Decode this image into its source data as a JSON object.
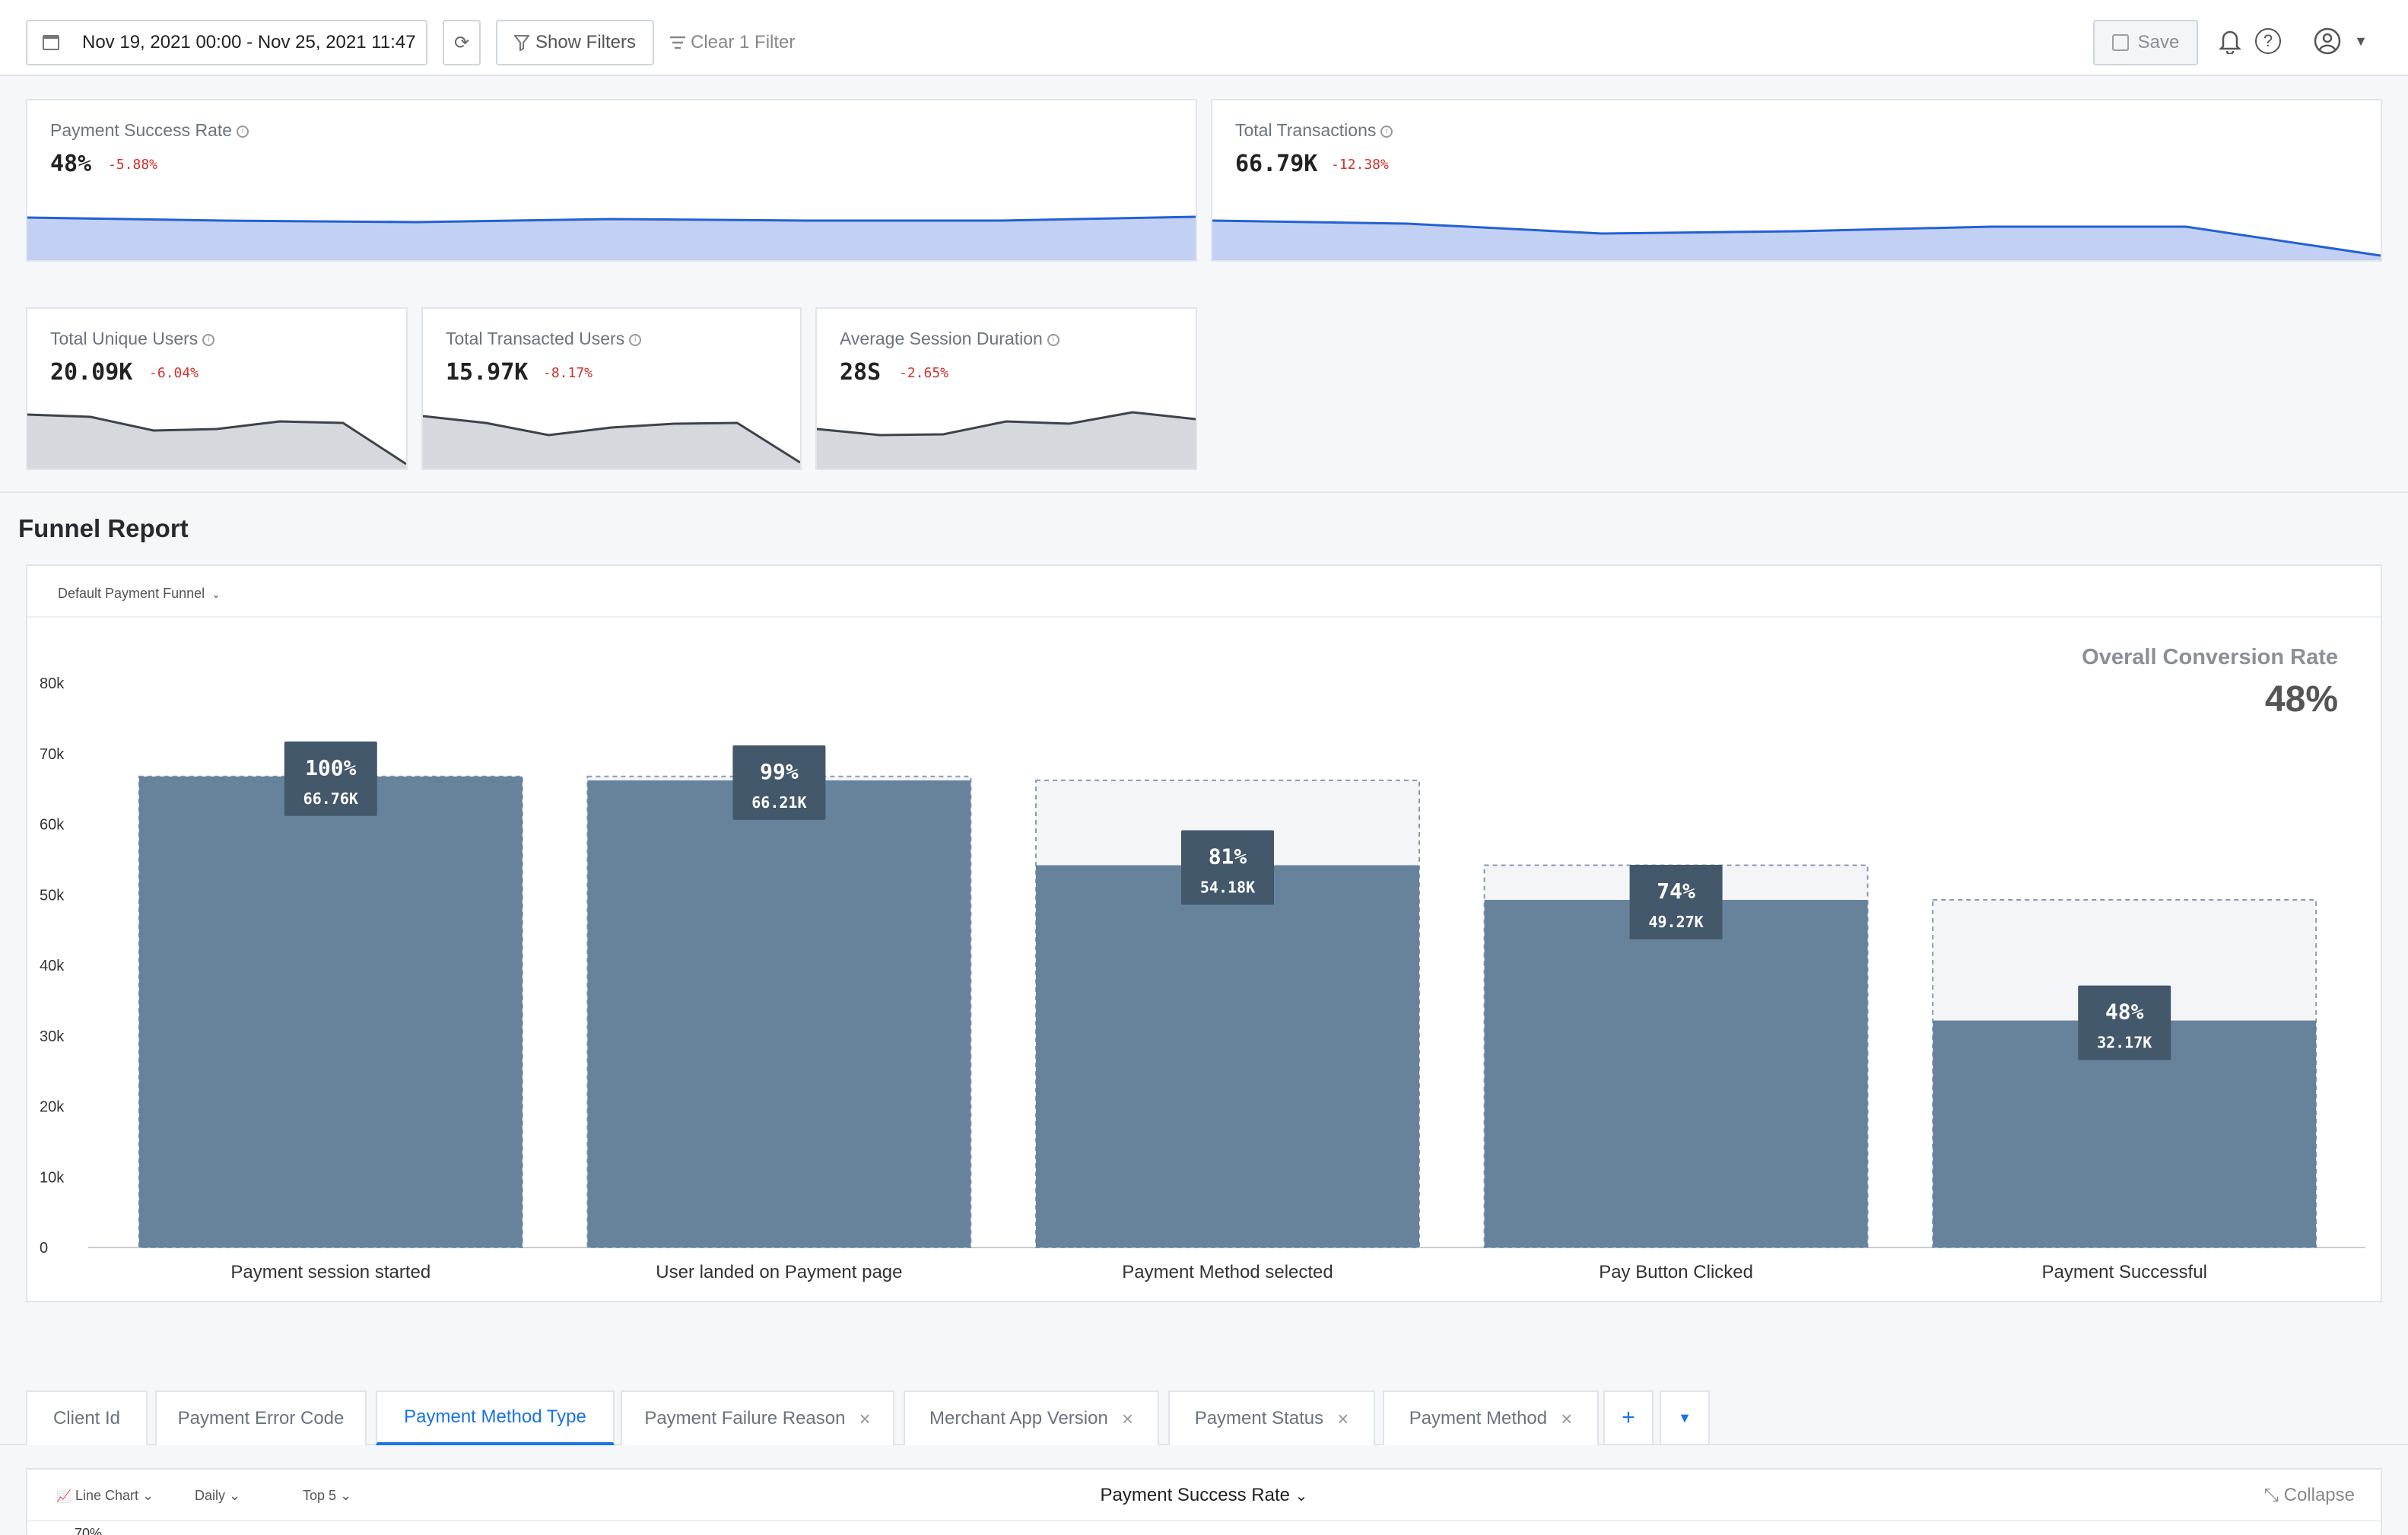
{
  "toolbar": {
    "date_range": "Nov 19, 2021 00:00 - Nov 25, 2021 11:47",
    "show_filters": "Show Filters",
    "clear_filter": "Clear 1 Filter",
    "save": "Save"
  },
  "kpis": [
    {
      "title": "Payment Success Rate",
      "value": "48%",
      "delta": "-5.88%",
      "trend": [
        0.56,
        0.52,
        0.5,
        0.54,
        0.52,
        0.52,
        0.57
      ]
    },
    {
      "title": "Total Transactions",
      "value": "66.79K",
      "delta": "-12.38%",
      "trend": [
        0.52,
        0.48,
        0.35,
        0.38,
        0.44,
        0.44,
        0.06
      ]
    },
    {
      "title": "Total Unique Users",
      "value": "20.09K",
      "delta": "-6.04%",
      "trend": [
        0.71,
        0.68,
        0.5,
        0.52,
        0.62,
        0.6,
        0.06
      ]
    },
    {
      "title": "Total Transacted Users",
      "value": "15.97K",
      "delta": "-8.17%",
      "trend": [
        0.69,
        0.6,
        0.44,
        0.54,
        0.59,
        0.6,
        0.08
      ]
    },
    {
      "title": "Average Session Duration",
      "value": "28S",
      "delta": "-2.65%",
      "trend": [
        0.52,
        0.44,
        0.45,
        0.62,
        0.59,
        0.74,
        0.65
      ]
    }
  ],
  "funnel": {
    "title": "Funnel Report",
    "selector": "Default Payment Funnel",
    "conversion_label": "Overall Conversion Rate",
    "conversion_value": "48%",
    "y_ticks": [
      "0",
      "10k",
      "20k",
      "30k",
      "40k",
      "50k",
      "60k",
      "70k",
      "80k"
    ]
  },
  "chart_data": {
    "type": "bar",
    "categories": [
      "Payment session started",
      "User landed on Payment page",
      "Payment Method selected",
      "Pay Button Clicked",
      "Payment Successful"
    ],
    "series": [
      {
        "values": [
          66760,
          66210,
          54180,
          49270,
          32170
        ]
      }
    ],
    "prev_step_values": [
      66760,
      66760,
      66210,
      54180,
      49270
    ],
    "percent_labels": [
      "100%",
      "99%",
      "81%",
      "74%",
      "48%"
    ],
    "value_labels": [
      "66.76K",
      "66.21K",
      "54.18K",
      "49.27K",
      "32.17K"
    ],
    "ylim": [
      0,
      80000
    ],
    "grid": false,
    "colors": {
      "bar": "#67839c",
      "dropoff": "#f4f5f7",
      "label_bg": "#43586b"
    }
  },
  "tabs": [
    {
      "label": "Client Id",
      "closable": false,
      "active": false
    },
    {
      "label": "Payment Error Code",
      "closable": false,
      "active": false
    },
    {
      "label": "Payment Method Type",
      "closable": false,
      "active": true
    },
    {
      "label": "Payment Failure Reason",
      "closable": true,
      "active": false
    },
    {
      "label": "Merchant App Version",
      "closable": true,
      "active": false
    },
    {
      "label": "Payment Status",
      "closable": true,
      "active": false
    },
    {
      "label": "Payment Method",
      "closable": true,
      "active": false
    }
  ],
  "bottom": {
    "chart_type": "Line Chart",
    "interval": "Daily",
    "top_n": "Top 5",
    "metric": "Payment Success Rate",
    "collapse": "Collapse",
    "first_tick": "70%"
  }
}
